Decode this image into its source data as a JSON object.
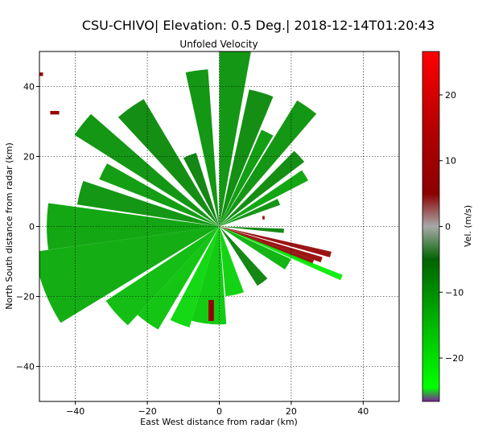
{
  "chart_data": {
    "type": "heatmap",
    "suptitle": "CSU-CHIVO| Elevation: 0.5 Deg.| 2018-12-14T01:20:43",
    "title": "Unfoled Velocity",
    "xlabel": "East West distance from radar (km)",
    "ylabel": "North South distance from radar (km)",
    "xlim": [
      -50,
      50
    ],
    "ylim": [
      -50,
      50
    ],
    "xticks": [
      "−40",
      "−20",
      "0",
      "20",
      "40"
    ],
    "yticks": [
      "−40",
      "−20",
      "0",
      "20",
      "40"
    ],
    "xtick_values": [
      -40,
      -20,
      0,
      20,
      40
    ],
    "ytick_values": [
      -40,
      -20,
      0,
      20,
      40
    ],
    "grid": true,
    "colorbar": {
      "label": "Vel. (m/s)",
      "range": [
        -26.6,
        26.6
      ],
      "ticks": [
        "−20",
        "−10",
        "0",
        "10",
        "20"
      ],
      "tick_values": [
        -20,
        -10,
        0,
        10,
        20
      ],
      "colors": [
        {
          "value": -26.6,
          "color": "#7f1f9a"
        },
        {
          "value": -24.5,
          "color": "#00ff00"
        },
        {
          "value": -16,
          "color": "#00c000"
        },
        {
          "value": -5,
          "color": "#006400"
        },
        {
          "value": 0,
          "color": "#a8a8a8"
        },
        {
          "value": 5,
          "color": "#8b0000"
        },
        {
          "value": 14,
          "color": "#b00000"
        },
        {
          "value": 26.6,
          "color": "#ff0000"
        }
      ]
    },
    "radar_sectors": [
      {
        "az_start": 0,
        "az_end": 10,
        "r_max": 52,
        "vel": -10
      },
      {
        "az_start": 12,
        "az_end": 22,
        "r_max": 40,
        "vel": -9
      },
      {
        "az_start": 23,
        "az_end": 30,
        "r_max": 30,
        "vel": -11
      },
      {
        "az_start": 31,
        "az_end": 40,
        "r_max": 42,
        "vel": -10
      },
      {
        "az_start": 44,
        "az_end": 52,
        "r_max": 30,
        "vel": -9
      },
      {
        "az_start": 55,
        "az_end": 62,
        "r_max": 28,
        "vel": -12
      },
      {
        "az_start": 64,
        "az_end": 70,
        "r_max": 18,
        "vel": -10
      },
      {
        "az_start": 92,
        "az_end": 96,
        "r_max": 18,
        "vel": -8
      },
      {
        "az_start": 103,
        "az_end": 106,
        "r_max": 32,
        "vel": 7
      },
      {
        "az_start": 107,
        "az_end": 110,
        "r_max": 30,
        "vel": 7
      },
      {
        "az_start": 110,
        "az_end": 113,
        "r_max": 28,
        "vel": 6
      },
      {
        "az_start": 112,
        "az_end": 114.5,
        "r_max": 37,
        "vel": -22
      },
      {
        "az_start": 115,
        "az_end": 124,
        "r_max": 22,
        "vel": -14
      },
      {
        "az_start": 138,
        "az_end": 148,
        "r_max": 20,
        "vel": -8
      },
      {
        "az_start": 160,
        "az_end": 175,
        "r_max": 20,
        "vel": -18
      },
      {
        "az_start": 176,
        "az_end": 196,
        "r_max": 28,
        "vel": -17
      },
      {
        "az_start": 196,
        "az_end": 207,
        "r_max": 30,
        "vel": -19
      },
      {
        "az_start": 210,
        "az_end": 222,
        "r_max": 34,
        "vel": -16
      },
      {
        "az_start": 222,
        "az_end": 236,
        "r_max": 38,
        "vel": -15
      },
      {
        "az_start": 238,
        "az_end": 262,
        "r_max": 52,
        "vel": -13
      },
      {
        "az_start": 262,
        "az_end": 278,
        "r_max": 48,
        "vel": -12
      },
      {
        "az_start": 279,
        "az_end": 289,
        "r_max": 40,
        "vel": -10
      },
      {
        "az_start": 292,
        "az_end": 300,
        "r_max": 36,
        "vel": -11
      },
      {
        "az_start": 303,
        "az_end": 312,
        "r_max": 48,
        "vel": -10
      },
      {
        "az_start": 318,
        "az_end": 330,
        "r_max": 42,
        "vel": -9
      },
      {
        "az_start": 333,
        "az_end": 343,
        "r_max": 22,
        "vel": -8
      },
      {
        "az_start": 348,
        "az_end": 356,
        "r_max": 45,
        "vel": -10
      }
    ],
    "echo_patches": [
      {
        "x": -3,
        "y": -27,
        "w": 1.5,
        "h": 6,
        "vel": 8
      },
      {
        "x": -50,
        "y": 43,
        "w": 1,
        "h": 1,
        "vel": 8
      },
      {
        "x": -47,
        "y": 32,
        "w": 2.5,
        "h": 1,
        "vel": 8
      },
      {
        "x": 12,
        "y": 2,
        "w": 0.6,
        "h": 1,
        "vel": 12
      }
    ]
  }
}
